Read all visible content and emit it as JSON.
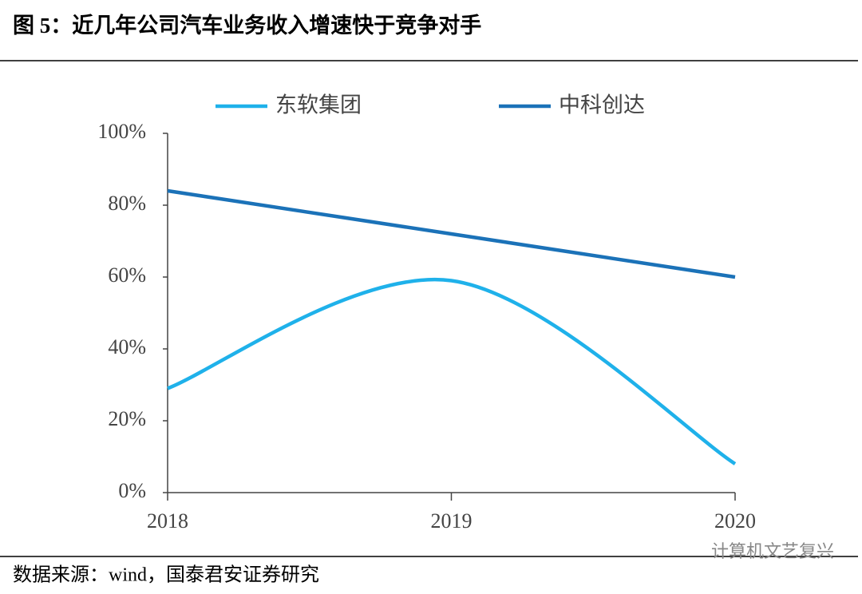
{
  "chart_data": {
    "type": "line",
    "title": "图 5：近几年公司汽车业务收入增速快于竞争对手",
    "categories": [
      "2018",
      "2019",
      "2020"
    ],
    "series": [
      {
        "name": "东软集团",
        "color": "#1fb1ea",
        "values": [
          29,
          59,
          8
        ]
      },
      {
        "name": "中科创达",
        "color": "#1b72b8",
        "values": [
          84,
          72,
          60
        ]
      }
    ],
    "ylim": [
      0,
      100
    ],
    "yticks": [
      {
        "value": 0,
        "label": "0%"
      },
      {
        "value": 20,
        "label": "20%"
      },
      {
        "value": 40,
        "label": "40%"
      },
      {
        "value": 60,
        "label": "60%"
      },
      {
        "value": 80,
        "label": "80%"
      },
      {
        "value": 100,
        "label": "100%"
      }
    ],
    "smooth": true,
    "grid": false,
    "legend": "top",
    "source": "数据来源：wind，国泰君安证券研究",
    "watermark": "计算机文艺复兴"
  }
}
